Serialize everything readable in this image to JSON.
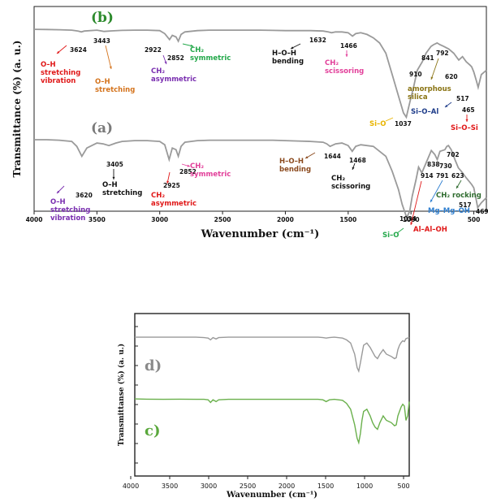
{
  "chart_data": [
    {
      "type": "line",
      "title": "",
      "xlabel": "Wavenumber (cm⁻¹)",
      "ylabel": "Transmittance (%) (a. u.)",
      "xlim": [
        4000,
        400
      ],
      "x_ticks": [
        "4000",
        "3500",
        "3000",
        "2500",
        "2000",
        "1500",
        "1000",
        "500"
      ],
      "x_tick_values": [
        4000,
        3500,
        3000,
        2500,
        2000,
        1500,
        1000,
        500
      ],
      "series": [
        {
          "name": "(b)",
          "color": "#9a9a9a",
          "x": [
            4000,
            3900,
            3800,
            3700,
            3650,
            3624,
            3600,
            3500,
            3443,
            3380,
            3300,
            3200,
            3100,
            3000,
            2960,
            2922,
            2900,
            2870,
            2852,
            2830,
            2800,
            2700,
            2600,
            2500,
            2400,
            2300,
            2200,
            2100,
            2000,
            1900,
            1800,
            1700,
            1660,
            1632,
            1600,
            1550,
            1500,
            1466,
            1440,
            1400,
            1350,
            1300,
            1250,
            1200,
            1150,
            1100,
            1060,
            1037,
            1010,
            980,
            950,
            910,
            880,
            841,
            820,
            792,
            770,
            740,
            700,
            660,
            620,
            590,
            560,
            530,
            517,
            500,
            480,
            465,
            440,
            400
          ],
          "y": [
            2,
            2.2,
            2.5,
            3,
            4,
            5,
            4,
            3,
            4.5,
            3.8,
            3.2,
            3,
            3,
            3.5,
            7,
            14,
            9,
            11,
            16,
            8,
            5,
            3.5,
            3,
            3,
            3,
            3,
            3,
            3.2,
            3.5,
            3.5,
            3.5,
            4,
            5,
            6,
            5,
            5,
            6,
            10,
            7,
            6,
            8,
            12,
            18,
            30,
            55,
            80,
            100,
            105,
            88,
            70,
            50,
            40,
            30,
            22,
            20,
            18,
            20,
            22,
            25,
            30,
            38,
            34,
            40,
            44,
            46,
            52,
            62,
            70,
            55,
            50
          ]
        },
        {
          "name": "(a)",
          "color": "#9a9a9a",
          "x": [
            4000,
            3900,
            3800,
            3700,
            3660,
            3620,
            3580,
            3500,
            3450,
            3405,
            3350,
            3300,
            3200,
            3100,
            3000,
            2960,
            2925,
            2900,
            2870,
            2852,
            2830,
            2800,
            2700,
            2600,
            2500,
            2400,
            2300,
            2200,
            2100,
            2000,
            1900,
            1800,
            1700,
            1670,
            1644,
            1600,
            1550,
            1500,
            1468,
            1440,
            1400,
            1300,
            1200,
            1150,
            1100,
            1070,
            1034,
            1010,
            990,
            960,
            940,
            914,
            880,
            838,
            810,
            791,
            770,
            730,
            715,
            702,
            680,
            650,
            623,
            600,
            560,
            517,
            500,
            480,
            469,
            440,
            400
          ],
          "y": [
            2,
            2,
            2.5,
            4,
            10,
            22,
            12,
            6,
            7,
            9,
            6,
            4,
            3,
            3,
            4,
            8,
            26,
            12,
            14,
            22,
            10,
            5,
            3,
            2.5,
            2.5,
            2.5,
            2.5,
            2.5,
            2.5,
            3,
            3.5,
            4,
            5,
            7,
            10,
            7,
            6,
            9,
            16,
            10,
            8,
            10,
            22,
            40,
            62,
            80,
            96,
            88,
            70,
            50,
            35,
            42,
            30,
            15,
            20,
            26,
            16,
            14,
            10,
            9,
            14,
            26,
            36,
            40,
            48,
            56,
            60,
            75,
            84,
            78,
            72
          ]
        }
      ],
      "annotations": [
        {
          "text": "3624",
          "color": "#111111"
        },
        {
          "text": "3443",
          "color": "#111111"
        },
        {
          "text": "2922",
          "color": "#111111"
        },
        {
          "text": "2852",
          "color": "#111111"
        },
        {
          "text": "1632",
          "color": "#111111"
        },
        {
          "text": "1466",
          "color": "#111111"
        },
        {
          "text": "910",
          "color": "#111111"
        },
        {
          "text": "841",
          "color": "#111111"
        },
        {
          "text": "792",
          "color": "#111111"
        },
        {
          "text": "620",
          "color": "#111111"
        },
        {
          "text": "517",
          "color": "#111111"
        },
        {
          "text": "465",
          "color": "#111111"
        },
        {
          "text": "1037",
          "color": "#111111"
        },
        {
          "text": "3620",
          "color": "#111111"
        },
        {
          "text": "3405",
          "color": "#111111"
        },
        {
          "text": "2925",
          "color": "#111111"
        },
        {
          "text": "2852",
          "color": "#111111"
        },
        {
          "text": "1644",
          "color": "#111111"
        },
        {
          "text": "1468",
          "color": "#111111"
        },
        {
          "text": "838",
          "color": "#111111"
        },
        {
          "text": "702",
          "color": "#111111"
        },
        {
          "text": "730",
          "color": "#111111"
        },
        {
          "text": "914",
          "color": "#111111"
        },
        {
          "text": "791",
          "color": "#111111"
        },
        {
          "text": "623",
          "color": "#111111"
        },
        {
          "text": "517",
          "color": "#111111"
        },
        {
          "text": "469",
          "color": "#111111"
        },
        {
          "text": "1034",
          "color": "#111111"
        }
      ],
      "labels": {
        "b": "(b)",
        "a": "(a)",
        "oh_stretch_vib_b": [
          "O–H",
          "stretching",
          "vibration"
        ],
        "oh_stretch_b": [
          "O–H",
          "stretching"
        ],
        "ch2_asym_b": [
          "CH₂",
          "asymmetric"
        ],
        "ch2_sym_b": [
          "CH₂",
          "symmetric"
        ],
        "hoh_bend_b": [
          "H–O–H",
          "bending"
        ],
        "ch2_sciss_b": [
          "CH₂",
          "scissoring"
        ],
        "amorph_silica": [
          "amorphous",
          "silica"
        ],
        "sio_b": "Si–O",
        "sioal": "Si–O–Al",
        "siosi": "Si–O–Si",
        "oh_stretch_vib_a": [
          "O–H",
          "stretching",
          "vibration"
        ],
        "oh_stretch_a": [
          "O–H",
          "stretching"
        ],
        "ch2_asym_a": [
          "CH₂",
          "asymmetric"
        ],
        "ch2_sym_a": [
          "CH₂",
          "symmetric"
        ],
        "hoh_bend_a": [
          "H–O–H",
          "bending"
        ],
        "ch2_sciss_a": [
          "CH₂",
          "scissoring"
        ],
        "ch2_rocking": "CH₂ rocking",
        "mgmgoh": "Mg–Mg–OH",
        "alaloh": "Al–Al–OH",
        "sio_a": "Si–O"
      },
      "colors": {
        "red": "#e01818",
        "orange": "#d4731c",
        "purple": "#7a2fb0",
        "green": "#23a84a",
        "brown": "#8b4a1e",
        "pink": "#e2409a",
        "olive": "#8a7414",
        "navy": "#1f3d8a",
        "blue": "#2f7fd0",
        "darkgreen": "#2e6b2e",
        "yellow": "#e8b400"
      }
    },
    {
      "type": "line",
      "title": "",
      "xlabel": "Wavenumber (cm⁻¹)",
      "ylabel": "Transmittanse (%) (a. u.)",
      "xlim": [
        4000,
        400
      ],
      "x_ticks": [
        "4000",
        "3500",
        "3000",
        "2500",
        "2000",
        "1500",
        "1000",
        "500"
      ],
      "x_tick_values": [
        4000,
        3500,
        3000,
        2500,
        2000,
        1500,
        1000,
        500
      ],
      "series": [
        {
          "name": "d)",
          "color": "#9a9a9a",
          "x": [
            3850,
            3700,
            3500,
            3300,
            3100,
            3000,
            2950,
            2920,
            2890,
            2852,
            2820,
            2700,
            2500,
            2300,
            2100,
            1900,
            1700,
            1600,
            1540,
            1500,
            1460,
            1400,
            1300,
            1250,
            1200,
            1150,
            1120,
            1100,
            1080,
            1060,
            1040,
            1000,
            960,
            930,
            900,
            870,
            840,
            800,
            780,
            760,
            700,
            660,
            640,
            620,
            600,
            580,
            560,
            540,
            520,
            500,
            480
          ],
          "y": [
            2,
            2,
            2,
            2,
            2,
            3,
            4,
            8,
            3,
            6,
            3,
            2,
            2,
            2,
            2,
            2,
            2,
            2,
            3,
            4,
            3,
            2,
            4,
            8,
            15,
            40,
            70,
            78,
            60,
            40,
            20,
            15,
            25,
            35,
            45,
            50,
            40,
            30,
            35,
            40,
            45,
            50,
            48,
            30,
            20,
            14,
            10,
            12,
            5,
            4,
            3
          ],
          "color_key": "gray"
        },
        {
          "name": "c)",
          "color": "#6ab04c",
          "x": [
            3850,
            3700,
            3500,
            3300,
            3100,
            3000,
            2950,
            2920,
            2890,
            2852,
            2820,
            2700,
            2500,
            2300,
            2100,
            1900,
            1700,
            1600,
            1540,
            1500,
            1460,
            1400,
            1300,
            1250,
            1200,
            1150,
            1120,
            1100,
            1080,
            1060,
            1040,
            1000,
            960,
            930,
            900,
            870,
            840,
            800,
            780,
            760,
            700,
            660,
            640,
            620,
            600,
            580,
            560,
            540,
            520,
            500,
            480
          ],
          "y": [
            2,
            2.5,
            3,
            2.5,
            3,
            3,
            4,
            10,
            4,
            8,
            4,
            3,
            3,
            3,
            3,
            3,
            3,
            3,
            4,
            8,
            4,
            3,
            5,
            12,
            25,
            60,
            90,
            100,
            80,
            50,
            30,
            25,
            40,
            55,
            65,
            70,
            55,
            40,
            45,
            50,
            55,
            62,
            60,
            40,
            30,
            20,
            14,
            18,
            50,
            40,
            8
          ],
          "color_key": "green"
        }
      ],
      "labels": {
        "d": "d)",
        "c": "c)"
      }
    }
  ]
}
